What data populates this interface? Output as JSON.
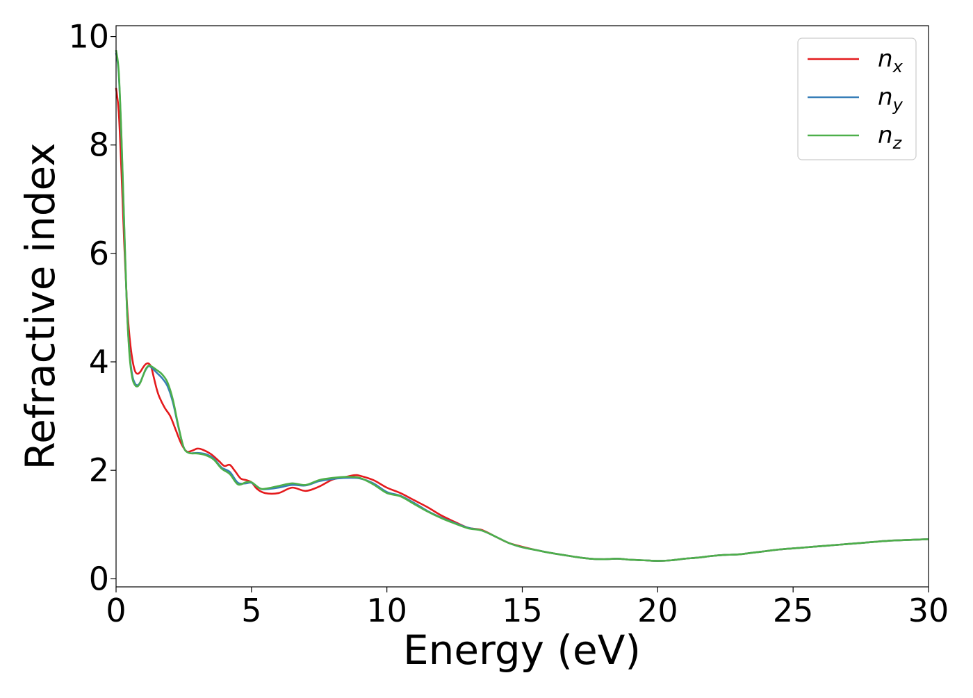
{
  "chart_data": {
    "type": "line",
    "xlabel": "Energy (eV)",
    "ylabel": "Refractive index",
    "xlim": [
      0,
      30
    ],
    "ylim": [
      -0.15,
      10.2
    ],
    "xticks": [
      0,
      5,
      10,
      15,
      20,
      25,
      30
    ],
    "xtick_labels": [
      "0",
      "5",
      "10",
      "15",
      "20",
      "25",
      "30"
    ],
    "yticks": [
      0,
      2,
      4,
      6,
      8,
      10
    ],
    "ytick_labels": [
      "0",
      "2",
      "4",
      "6",
      "8",
      "10"
    ],
    "grid": false,
    "legend_position": "top-right",
    "series": [
      {
        "name": "n_x",
        "label_main": "n",
        "label_sub": "x",
        "color": "#e41a1c",
        "points": [
          [
            0,
            9.05
          ],
          [
            0.1,
            8.6
          ],
          [
            0.2,
            7.5
          ],
          [
            0.3,
            6.2
          ],
          [
            0.4,
            5.1
          ],
          [
            0.5,
            4.45
          ],
          [
            0.6,
            4.05
          ],
          [
            0.7,
            3.83
          ],
          [
            0.8,
            3.78
          ],
          [
            0.9,
            3.82
          ],
          [
            1.0,
            3.9
          ],
          [
            1.1,
            3.96
          ],
          [
            1.2,
            3.97
          ],
          [
            1.3,
            3.9
          ],
          [
            1.4,
            3.7
          ],
          [
            1.5,
            3.5
          ],
          [
            1.6,
            3.35
          ],
          [
            1.8,
            3.15
          ],
          [
            2.0,
            3.0
          ],
          [
            2.2,
            2.75
          ],
          [
            2.4,
            2.5
          ],
          [
            2.6,
            2.35
          ],
          [
            2.8,
            2.36
          ],
          [
            3.0,
            2.4
          ],
          [
            3.2,
            2.38
          ],
          [
            3.5,
            2.3
          ],
          [
            3.8,
            2.17
          ],
          [
            4.0,
            2.08
          ],
          [
            4.2,
            2.1
          ],
          [
            4.4,
            1.98
          ],
          [
            4.6,
            1.85
          ],
          [
            4.8,
            1.82
          ],
          [
            5.0,
            1.78
          ],
          [
            5.2,
            1.66
          ],
          [
            5.5,
            1.58
          ],
          [
            6.0,
            1.58
          ],
          [
            6.5,
            1.68
          ],
          [
            7.0,
            1.62
          ],
          [
            7.5,
            1.7
          ],
          [
            8.0,
            1.83
          ],
          [
            8.5,
            1.88
          ],
          [
            8.8,
            1.91
          ],
          [
            9.0,
            1.9
          ],
          [
            9.5,
            1.82
          ],
          [
            10.0,
            1.68
          ],
          [
            10.5,
            1.58
          ],
          [
            11.0,
            1.45
          ],
          [
            11.5,
            1.32
          ],
          [
            12.0,
            1.17
          ],
          [
            12.5,
            1.05
          ],
          [
            13.0,
            0.94
          ],
          [
            13.5,
            0.9
          ],
          [
            14.0,
            0.78
          ],
          [
            14.5,
            0.66
          ],
          [
            15.0,
            0.59
          ],
          [
            15.5,
            0.53
          ],
          [
            16.0,
            0.48
          ],
          [
            16.5,
            0.44
          ],
          [
            17.0,
            0.4
          ],
          [
            17.5,
            0.37
          ],
          [
            18.0,
            0.36
          ],
          [
            18.5,
            0.37
          ],
          [
            19.0,
            0.35
          ],
          [
            19.5,
            0.34
          ],
          [
            20.0,
            0.33
          ],
          [
            20.5,
            0.34
          ],
          [
            21.0,
            0.37
          ],
          [
            21.5,
            0.39
          ],
          [
            22.0,
            0.42
          ],
          [
            22.5,
            0.44
          ],
          [
            23.0,
            0.45
          ],
          [
            23.5,
            0.48
          ],
          [
            24.0,
            0.51
          ],
          [
            24.5,
            0.54
          ],
          [
            25.0,
            0.56
          ],
          [
            25.5,
            0.58
          ],
          [
            26.0,
            0.6
          ],
          [
            26.5,
            0.62
          ],
          [
            27.0,
            0.64
          ],
          [
            27.5,
            0.66
          ],
          [
            28.0,
            0.68
          ],
          [
            28.5,
            0.7
          ],
          [
            29.0,
            0.71
          ],
          [
            29.5,
            0.72
          ],
          [
            30.0,
            0.73
          ]
        ]
      },
      {
        "name": "n_y",
        "label_main": "n",
        "label_sub": "y",
        "color": "#377eb8",
        "points": [
          [
            0,
            9.7
          ],
          [
            0.1,
            9.3
          ],
          [
            0.2,
            8.1
          ],
          [
            0.3,
            6.5
          ],
          [
            0.4,
            5.0
          ],
          [
            0.5,
            4.15
          ],
          [
            0.6,
            3.75
          ],
          [
            0.7,
            3.6
          ],
          [
            0.8,
            3.57
          ],
          [
            0.9,
            3.63
          ],
          [
            1.0,
            3.75
          ],
          [
            1.1,
            3.86
          ],
          [
            1.2,
            3.92
          ],
          [
            1.3,
            3.9
          ],
          [
            1.5,
            3.8
          ],
          [
            1.7,
            3.7
          ],
          [
            1.9,
            3.55
          ],
          [
            2.1,
            3.25
          ],
          [
            2.3,
            2.8
          ],
          [
            2.5,
            2.42
          ],
          [
            2.7,
            2.32
          ],
          [
            3.0,
            2.32
          ],
          [
            3.3,
            2.3
          ],
          [
            3.6,
            2.22
          ],
          [
            3.9,
            2.05
          ],
          [
            4.2,
            1.97
          ],
          [
            4.5,
            1.77
          ],
          [
            4.8,
            1.76
          ],
          [
            5.0,
            1.77
          ],
          [
            5.3,
            1.67
          ],
          [
            5.5,
            1.65
          ],
          [
            6.0,
            1.68
          ],
          [
            6.5,
            1.73
          ],
          [
            7.0,
            1.72
          ],
          [
            7.5,
            1.8
          ],
          [
            8.0,
            1.84
          ],
          [
            8.5,
            1.86
          ],
          [
            9.0,
            1.85
          ],
          [
            9.5,
            1.76
          ],
          [
            10.0,
            1.6
          ],
          [
            10.5,
            1.53
          ],
          [
            11.0,
            1.4
          ],
          [
            11.5,
            1.25
          ],
          [
            12.0,
            1.13
          ],
          [
            12.5,
            1.03
          ],
          [
            13.0,
            0.94
          ],
          [
            13.5,
            0.89
          ],
          [
            14.0,
            0.78
          ],
          [
            14.5,
            0.66
          ],
          [
            15.0,
            0.58
          ],
          [
            15.5,
            0.53
          ],
          [
            16.0,
            0.48
          ],
          [
            16.5,
            0.44
          ],
          [
            17.0,
            0.4
          ],
          [
            17.5,
            0.37
          ],
          [
            18.0,
            0.36
          ],
          [
            18.5,
            0.37
          ],
          [
            19.0,
            0.35
          ],
          [
            19.5,
            0.34
          ],
          [
            20.0,
            0.33
          ],
          [
            20.5,
            0.34
          ],
          [
            21.0,
            0.37
          ],
          [
            21.5,
            0.39
          ],
          [
            22.0,
            0.42
          ],
          [
            22.5,
            0.44
          ],
          [
            23.0,
            0.45
          ],
          [
            23.5,
            0.48
          ],
          [
            24.0,
            0.51
          ],
          [
            24.5,
            0.54
          ],
          [
            25.0,
            0.56
          ],
          [
            25.5,
            0.58
          ],
          [
            26.0,
            0.6
          ],
          [
            26.5,
            0.62
          ],
          [
            27.0,
            0.64
          ],
          [
            27.5,
            0.66
          ],
          [
            28.0,
            0.68
          ],
          [
            28.5,
            0.7
          ],
          [
            29.0,
            0.71
          ],
          [
            29.5,
            0.72
          ],
          [
            30.0,
            0.73
          ]
        ]
      },
      {
        "name": "n_z",
        "label_main": "n",
        "label_sub": "z",
        "color": "#4daf4a",
        "points": [
          [
            0,
            9.75
          ],
          [
            0.1,
            9.35
          ],
          [
            0.2,
            8.15
          ],
          [
            0.3,
            6.55
          ],
          [
            0.4,
            5.0
          ],
          [
            0.5,
            4.1
          ],
          [
            0.6,
            3.7
          ],
          [
            0.7,
            3.57
          ],
          [
            0.8,
            3.55
          ],
          [
            0.9,
            3.62
          ],
          [
            1.0,
            3.75
          ],
          [
            1.1,
            3.87
          ],
          [
            1.2,
            3.93
          ],
          [
            1.3,
            3.92
          ],
          [
            1.5,
            3.85
          ],
          [
            1.7,
            3.77
          ],
          [
            1.9,
            3.62
          ],
          [
            2.1,
            3.3
          ],
          [
            2.3,
            2.82
          ],
          [
            2.5,
            2.42
          ],
          [
            2.7,
            2.32
          ],
          [
            3.0,
            2.31
          ],
          [
            3.3,
            2.28
          ],
          [
            3.6,
            2.2
          ],
          [
            3.9,
            2.03
          ],
          [
            4.2,
            1.93
          ],
          [
            4.5,
            1.74
          ],
          [
            4.8,
            1.78
          ],
          [
            5.0,
            1.78
          ],
          [
            5.3,
            1.67
          ],
          [
            5.5,
            1.66
          ],
          [
            6.0,
            1.71
          ],
          [
            6.5,
            1.76
          ],
          [
            7.0,
            1.73
          ],
          [
            7.5,
            1.82
          ],
          [
            8.0,
            1.86
          ],
          [
            8.5,
            1.88
          ],
          [
            9.0,
            1.86
          ],
          [
            9.5,
            1.74
          ],
          [
            10.0,
            1.58
          ],
          [
            10.5,
            1.52
          ],
          [
            11.0,
            1.38
          ],
          [
            11.5,
            1.24
          ],
          [
            12.0,
            1.12
          ],
          [
            12.5,
            1.02
          ],
          [
            13.0,
            0.93
          ],
          [
            13.5,
            0.89
          ],
          [
            14.0,
            0.78
          ],
          [
            14.5,
            0.66
          ],
          [
            15.0,
            0.58
          ],
          [
            15.5,
            0.53
          ],
          [
            16.0,
            0.48
          ],
          [
            16.5,
            0.44
          ],
          [
            17.0,
            0.4
          ],
          [
            17.5,
            0.37
          ],
          [
            18.0,
            0.36
          ],
          [
            18.5,
            0.37
          ],
          [
            19.0,
            0.35
          ],
          [
            19.5,
            0.34
          ],
          [
            20.0,
            0.33
          ],
          [
            20.5,
            0.34
          ],
          [
            21.0,
            0.37
          ],
          [
            21.5,
            0.39
          ],
          [
            22.0,
            0.42
          ],
          [
            22.5,
            0.44
          ],
          [
            23.0,
            0.45
          ],
          [
            23.5,
            0.48
          ],
          [
            24.0,
            0.51
          ],
          [
            24.5,
            0.54
          ],
          [
            25.0,
            0.56
          ],
          [
            25.5,
            0.58
          ],
          [
            26.0,
            0.6
          ],
          [
            26.5,
            0.62
          ],
          [
            27.0,
            0.64
          ],
          [
            27.5,
            0.66
          ],
          [
            28.0,
            0.68
          ],
          [
            28.5,
            0.7
          ],
          [
            29.0,
            0.71
          ],
          [
            29.5,
            0.72
          ],
          [
            30.0,
            0.73
          ]
        ]
      }
    ]
  }
}
